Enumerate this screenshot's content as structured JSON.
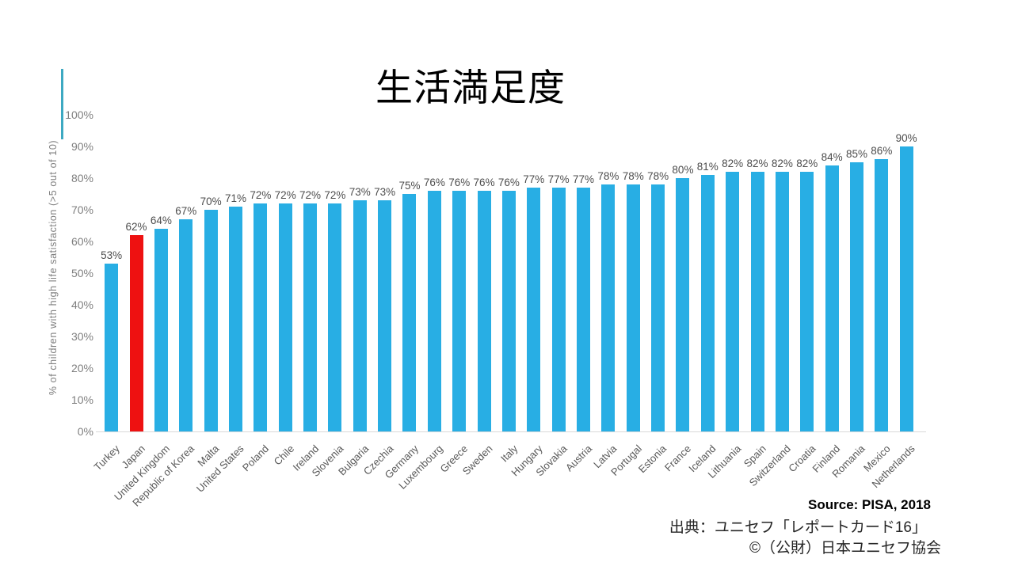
{
  "chart": {
    "title": "生活満足度",
    "y_axis_label": "% of children with high life satisfaction (>5 out of 10)"
  },
  "chart_data": {
    "type": "bar",
    "title": "生活満足度",
    "xlabel": "",
    "ylabel": "% of children with high life satisfaction (>5 out of 10)",
    "ylim": [
      0,
      100
    ],
    "y_ticks": [
      "0%",
      "10%",
      "20%",
      "30%",
      "40%",
      "50%",
      "60%",
      "70%",
      "80%",
      "90%",
      "100%"
    ],
    "grid": false,
    "legend_position": "none",
    "bar_color": "#28aee4",
    "highlight": {
      "category": "Japan",
      "color": "#ee1111"
    },
    "categories": [
      "Turkey",
      "Japan",
      "United Kingdom",
      "Republic of Korea",
      "Malta",
      "United States",
      "Poland",
      "Chile",
      "Ireland",
      "Slovenia",
      "Bulgaria",
      "Czechia",
      "Germany",
      "Luxembourg",
      "Greece",
      "Sweden",
      "Italy",
      "Hungary",
      "Slovakia",
      "Austria",
      "Latvia",
      "Portugal",
      "Estonia",
      "France",
      "Iceland",
      "Lithuania",
      "Spain",
      "Switzerland",
      "Croatia",
      "Finland",
      "Romania",
      "Mexico",
      "Netherlands"
    ],
    "values": [
      53,
      62,
      64,
      67,
      70,
      71,
      72,
      72,
      72,
      72,
      73,
      73,
      75,
      76,
      76,
      76,
      76,
      77,
      77,
      77,
      78,
      78,
      78,
      80,
      81,
      82,
      82,
      82,
      82,
      84,
      85,
      86,
      90
    ],
    "value_labels": [
      "53%",
      "62%",
      "64%",
      "67%",
      "70%",
      "71%",
      "72%",
      "72%",
      "72%",
      "72%",
      "73%",
      "73%",
      "75%",
      "76%",
      "76%",
      "76%",
      "76%",
      "77%",
      "77%",
      "77%",
      "78%",
      "78%",
      "78%",
      "80%",
      "81%",
      "82%",
      "82%",
      "82%",
      "82%",
      "84%",
      "85%",
      "86%",
      "90%"
    ]
  },
  "footer": {
    "source_en": "Source: PISA, 2018",
    "source_ja": "出典：ユニセフ「レポートカード16」",
    "copyright_ja": "©（公財）日本ユニセフ協会"
  },
  "colors": {
    "bar_blue": "#28aee4",
    "highlight_red": "#ee1111",
    "axis_text": "#7f7f7f",
    "value_text": "#4d4d4d",
    "category_text": "#595959",
    "axis_line": "#d9d9d9",
    "accent_line": "#3da9c2"
  }
}
